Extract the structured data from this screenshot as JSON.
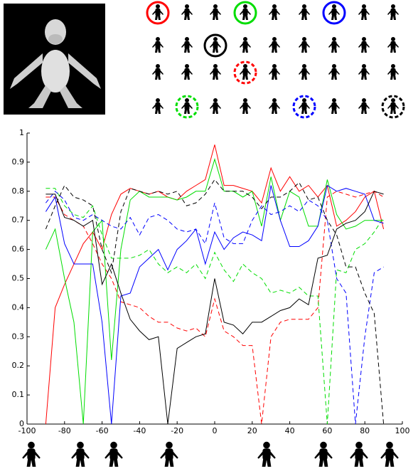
{
  "chart_data": {
    "type": "line",
    "x": [
      -90,
      -85,
      -80,
      -75,
      -70,
      -65,
      -60,
      -55,
      -50,
      -45,
      -40,
      -35,
      -30,
      -25,
      -20,
      -15,
      -10,
      -5,
      0,
      5,
      10,
      15,
      20,
      25,
      30,
      35,
      40,
      45,
      50,
      55,
      60,
      65,
      70,
      75,
      80,
      85,
      90
    ],
    "series": [
      {
        "color": "#ff0000",
        "dashed": false,
        "values": [
          0,
          0.4,
          0.48,
          0.55,
          0.62,
          0.66,
          0.6,
          0.72,
          0.79,
          0.81,
          0.8,
          0.79,
          0.8,
          0.78,
          0.77,
          0.8,
          0.82,
          0.84,
          0.96,
          0.82,
          0.82,
          0.81,
          0.8,
          0.76,
          0.88,
          0.8,
          0.85,
          0.8,
          0.82,
          0.78,
          0.82,
          0.68,
          0.7,
          0.73,
          0.78,
          0.8,
          0.67
        ]
      },
      {
        "color": "#ff0000",
        "dashed": true,
        "values": [
          0.78,
          0.78,
          0.72,
          0.7,
          0.68,
          0.62,
          0.55,
          0.5,
          0.42,
          0.41,
          0.4,
          0.37,
          0.35,
          0.35,
          0.33,
          0.32,
          0.33,
          0.3,
          0.43,
          0.32,
          0.3,
          0.27,
          0.27,
          0,
          0.3,
          0.35,
          0.36,
          0.36,
          0.36,
          0.4,
          0.78,
          0.8,
          0.79,
          0.78,
          0.79,
          0.8,
          0.78
        ]
      },
      {
        "color": "#00dd00",
        "dashed": false,
        "values": [
          0.6,
          0.67,
          0.5,
          0.35,
          0,
          0.66,
          0.7,
          0.22,
          0.6,
          0.77,
          0.8,
          0.78,
          0.78,
          0.78,
          0.77,
          0.78,
          0.8,
          0.8,
          0.91,
          0.8,
          0.8,
          0.78,
          0.8,
          0.68,
          0.85,
          0.7,
          0.8,
          0.78,
          0.68,
          0.68,
          0.84,
          0.72,
          0.67,
          0.68,
          0.7,
          0.7,
          0.7
        ]
      },
      {
        "color": "#00dd00",
        "dashed": true,
        "values": [
          0.81,
          0.81,
          0.75,
          0.72,
          0.71,
          0.75,
          0.65,
          0.57,
          0.57,
          0.57,
          0.58,
          0.6,
          0.55,
          0.52,
          0.54,
          0.52,
          0.55,
          0.5,
          0.59,
          0.53,
          0.49,
          0.55,
          0.52,
          0.5,
          0.45,
          0.46,
          0.45,
          0.47,
          0.44,
          0.44,
          0,
          0.53,
          0.52,
          0.6,
          0.62,
          0.66,
          0.71
        ]
      },
      {
        "color": "#0000ff",
        "dashed": false,
        "values": [
          0.73,
          0.78,
          0.62,
          0.55,
          0.55,
          0.55,
          0.35,
          0,
          0.44,
          0.45,
          0.54,
          0.57,
          0.6,
          0.53,
          0.6,
          0.63,
          0.67,
          0.55,
          0.66,
          0.6,
          0.64,
          0.66,
          0.65,
          0.63,
          0.82,
          0.7,
          0.61,
          0.61,
          0.63,
          0.68,
          0.82,
          0.8,
          0.81,
          0.8,
          0.79,
          0.7,
          0.69
        ]
      },
      {
        "color": "#0000ff",
        "dashed": true,
        "values": [
          0.76,
          0.8,
          0.77,
          0.71,
          0.7,
          0.72,
          0.7,
          0.68,
          0.67,
          0.71,
          0.65,
          0.71,
          0.72,
          0.7,
          0.67,
          0.66,
          0.67,
          0.62,
          0.76,
          0.64,
          0.62,
          0.62,
          0.7,
          0.75,
          0.72,
          0.73,
          0.75,
          0.73,
          0.77,
          0.75,
          0.7,
          0.5,
          0.45,
          0,
          0.3,
          0.52,
          0.54
        ]
      },
      {
        "color": "#000000",
        "dashed": false,
        "values": [
          0.79,
          0.79,
          0.71,
          0.7,
          0.68,
          0.7,
          0.48,
          0.55,
          0.45,
          0.36,
          0.32,
          0.29,
          0.3,
          0,
          0.26,
          0.28,
          0.3,
          0.31,
          0.5,
          0.35,
          0.34,
          0.31,
          0.35,
          0.35,
          0.37,
          0.39,
          0.4,
          0.43,
          0.41,
          0.57,
          0.58,
          0.67,
          0.69,
          0.7,
          0.73,
          0.8,
          0.79
        ]
      },
      {
        "color": "#000000",
        "dashed": true,
        "values": [
          0.67,
          0.75,
          0.82,
          0.78,
          0.77,
          0.75,
          0.6,
          0.52,
          0.73,
          0.81,
          0.8,
          0.79,
          0.8,
          0.79,
          0.8,
          0.75,
          0.76,
          0.79,
          0.84,
          0.8,
          0.8,
          0.8,
          0.78,
          0.74,
          0.78,
          0.78,
          0.8,
          0.83,
          0.77,
          0.78,
          0.7,
          0.65,
          0.54,
          0.54,
          0.45,
          0.38,
          0
        ]
      }
    ],
    "xlim": [
      -100,
      100
    ],
    "xticks": [
      -100,
      -80,
      -60,
      -40,
      -20,
      0,
      20,
      40,
      60,
      80,
      100
    ],
    "ylim": [
      0,
      1
    ],
    "yticks": [
      0,
      0.1,
      0.2,
      0.3,
      0.4,
      0.5,
      0.6,
      0.7,
      0.8,
      0.9,
      1
    ]
  }
}
